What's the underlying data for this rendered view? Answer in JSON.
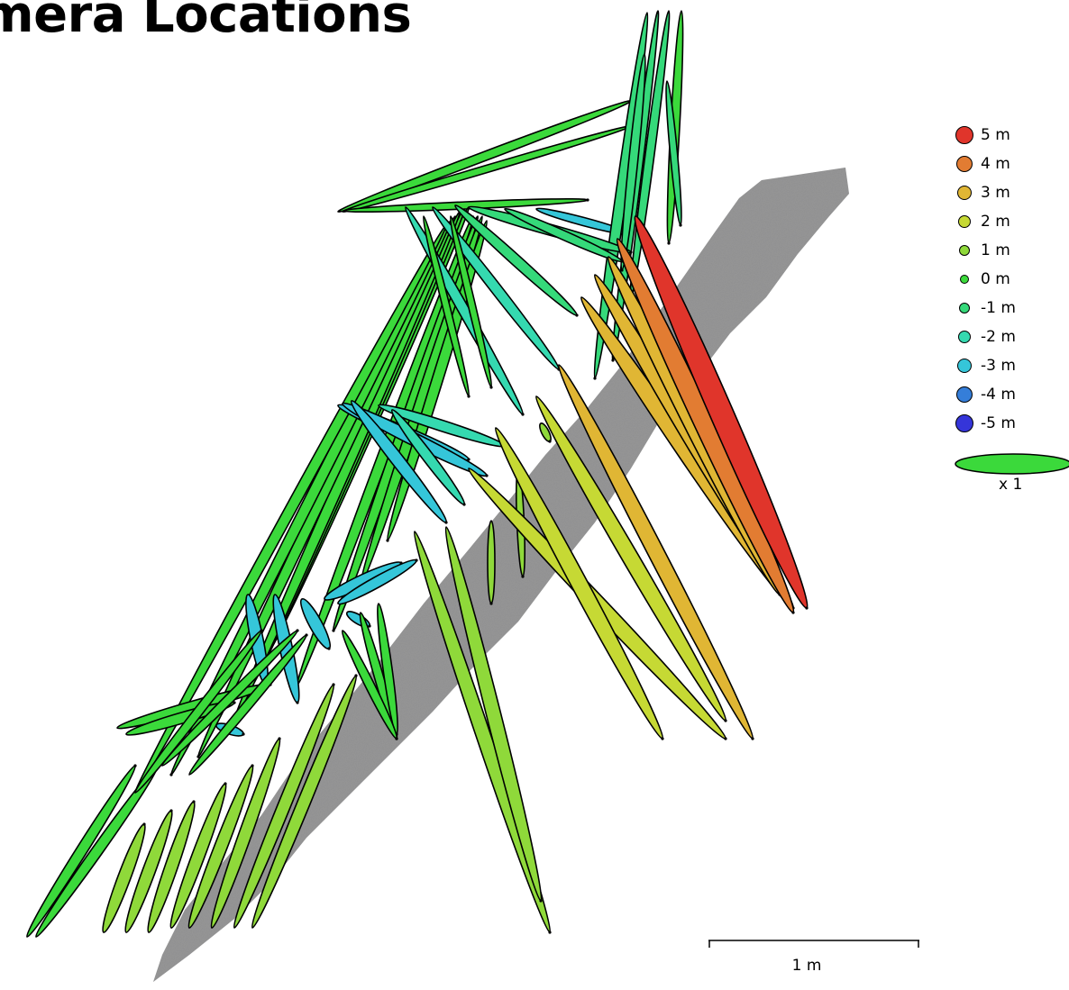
{
  "title": "amera Locations",
  "legend": {
    "items": [
      {
        "label": "5 m",
        "color": "#e0352b"
      },
      {
        "label": "4 m",
        "color": "#e27c32"
      },
      {
        "label": "3 m",
        "color": "#e0b634"
      },
      {
        "label": "2 m",
        "color": "#c6d934"
      },
      {
        "label": "1 m",
        "color": "#8fd93a"
      },
      {
        "label": "0 m",
        "color": "#3bd93b"
      },
      {
        "label": "-1 m",
        "color": "#35d97a"
      },
      {
        "label": "-2 m",
        "color": "#35d9b0"
      },
      {
        "label": "-3 m",
        "color": "#35c6d9"
      },
      {
        "label": "-4 m",
        "color": "#357ed9"
      },
      {
        "label": "-5 m",
        "color": "#3535d9"
      }
    ],
    "scale_label": "x 1",
    "scale_color": "#3bd93b"
  },
  "scale_bar": {
    "label": "1 m"
  },
  "ground_color": "#8e8e8e"
}
